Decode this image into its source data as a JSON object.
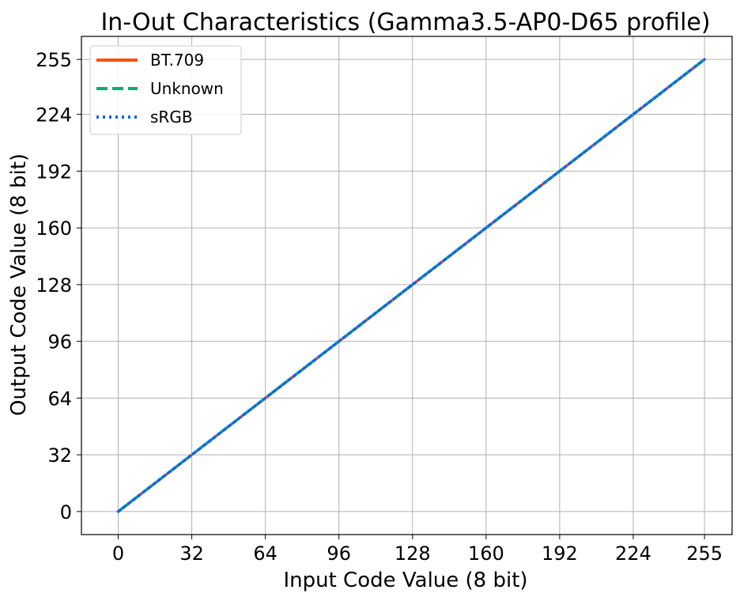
{
  "chart_data": {
    "type": "line",
    "title": "In-Out Characteristics (Gamma3.5-AP0-D65 profile)",
    "xlabel": "Input Code Value (8 bit)",
    "ylabel": "Output Code Value (8 bit)",
    "xlim": [
      -16,
      267
    ],
    "ylim": [
      -13,
      268
    ],
    "xticks": [
      0,
      32,
      64,
      96,
      128,
      160,
      192,
      224,
      255
    ],
    "yticks": [
      0,
      32,
      64,
      96,
      128,
      160,
      192,
      224,
      255
    ],
    "xtick_labels": [
      "0",
      "32",
      "64",
      "96",
      "128",
      "160",
      "192",
      "224",
      "255"
    ],
    "ytick_labels": [
      "0",
      "32",
      "64",
      "96",
      "128",
      "160",
      "192",
      "224",
      "255"
    ],
    "grid": true,
    "legend_position": "upper-left",
    "series": [
      {
        "name": "BT.709",
        "color": "#ff4e10",
        "style": "solid",
        "x": [
          0,
          255
        ],
        "y": [
          0,
          255
        ]
      },
      {
        "name": "Unknown",
        "color": "#00b06e",
        "style": "dashed",
        "x": [
          0,
          255
        ],
        "y": [
          0,
          255
        ]
      },
      {
        "name": "sRGB",
        "color": "#1464f0",
        "style": "dotted",
        "x": [
          0,
          255
        ],
        "y": [
          0,
          255
        ]
      }
    ]
  }
}
